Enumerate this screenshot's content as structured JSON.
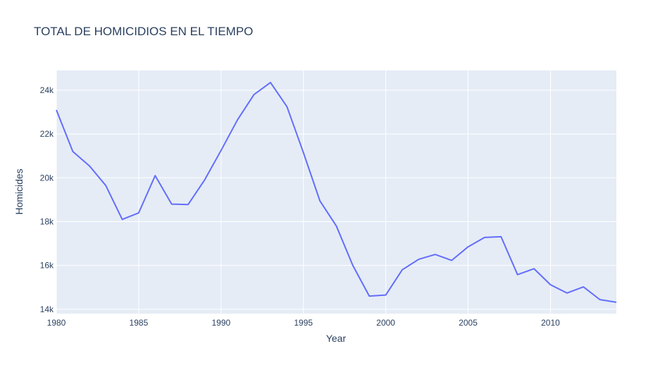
{
  "chart_data": {
    "type": "line",
    "title": "TOTAL DE HOMICIDIOS EN EL TIEMPO",
    "xlabel": "Year",
    "ylabel": "Homicides",
    "xlim": [
      1980,
      2014
    ],
    "ylim": [
      13800,
      24900
    ],
    "x_ticks": [
      1980,
      1985,
      1990,
      1995,
      2000,
      2005,
      2010
    ],
    "x_tick_labels": [
      "1980",
      "1985",
      "1990",
      "1995",
      "2000",
      "2005",
      "2010"
    ],
    "y_ticks": [
      14000,
      16000,
      18000,
      20000,
      22000,
      24000
    ],
    "y_tick_labels": [
      "14k",
      "16k",
      "18k",
      "20k",
      "22k",
      "24k"
    ],
    "grid": true,
    "colors": {
      "line": "#636efa",
      "plot_bg": "#e5ecf6",
      "grid": "#ffffff",
      "text": "#2a3f5f"
    },
    "series": [
      {
        "x": [
          1980,
          1981,
          1982,
          1983,
          1984,
          1985,
          1986,
          1987,
          1988,
          1989,
          1990,
          1991,
          1992,
          1993,
          1994,
          1995,
          1996,
          1997,
          1998,
          1999,
          2000,
          2001,
          2002,
          2003,
          2004,
          2005,
          2006,
          2007,
          2008,
          2009,
          2010,
          2011,
          2012,
          2013,
          2014
        ],
        "values": [
          23100,
          21200,
          20550,
          19650,
          18100,
          18400,
          20100,
          18800,
          18780,
          19900,
          21250,
          22650,
          23800,
          24350,
          23250,
          21150,
          18950,
          17800,
          16000,
          14600,
          14650,
          15800,
          16280,
          16500,
          16230,
          16850,
          17280,
          17310,
          15580,
          15850,
          15120,
          14740,
          15020,
          14440,
          14320
        ]
      }
    ]
  }
}
